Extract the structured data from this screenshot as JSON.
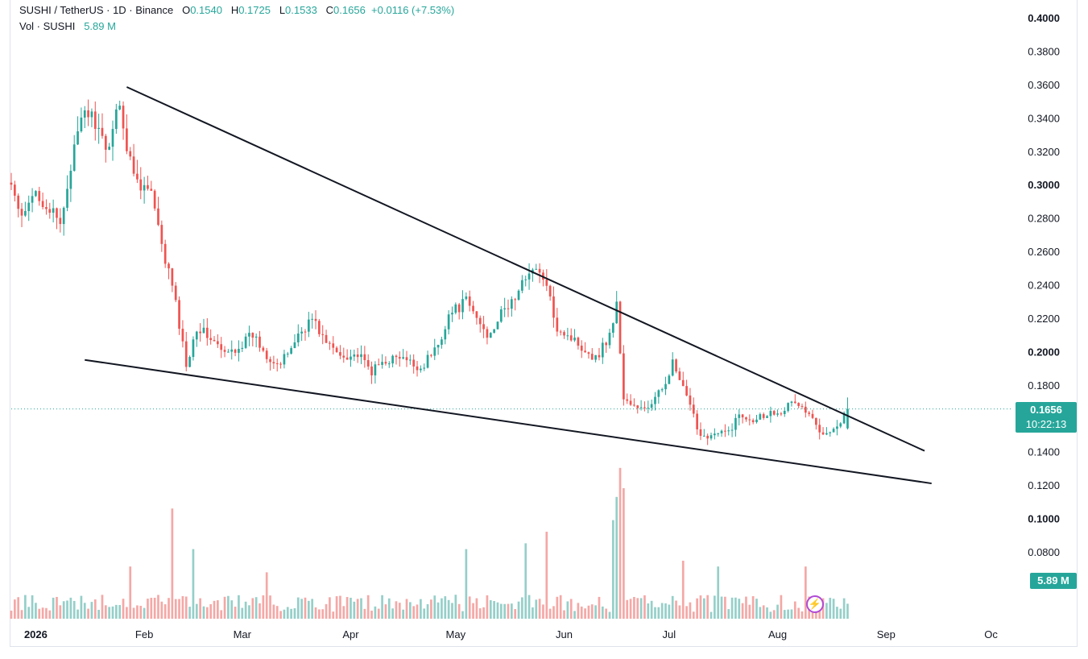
{
  "legend": {
    "pair": "SUSHI / TetherUS · 1D · Binance",
    "open_label": "O",
    "open": "0.1540",
    "high_label": "H",
    "high": "0.1725",
    "low_label": "L",
    "low": "0.1533",
    "close_label": "C",
    "close": "0.1656",
    "change": "+0.0116 (+7.53%)",
    "volume_label": "Vol · SUSHI",
    "volume": "5.89 M"
  },
  "price_tag": {
    "price": "0.1656",
    "countdown": "10:22:13"
  },
  "volume_tag": "5.89 M",
  "colors": {
    "up": "#26a69a",
    "down": "#ef5350",
    "vol_up": "#95cfc9",
    "vol_down": "#f4a8a6",
    "trendline": "#131722",
    "price_line": "#26a69a",
    "alert_icon": "#b04ad6"
  },
  "chart_data": {
    "type": "candlestick",
    "symbol": "SUSHI / TetherUS",
    "interval": "1D",
    "exchange": "Binance",
    "y_ticks": [
      "0.4000",
      "0.3800",
      "0.3600",
      "0.3400",
      "0.3200",
      "0.3000",
      "0.2800",
      "0.2600",
      "0.2400",
      "0.2200",
      "0.2000",
      "0.1800",
      "0.1400",
      "0.1200",
      "0.1000",
      "0.0800"
    ],
    "x_ticks": [
      "2026",
      "Feb",
      "Mar",
      "Apr",
      "May",
      "Jun",
      "Jul",
      "Aug",
      "Sep",
      "Oc"
    ],
    "ylim": [
      0.08,
      0.4
    ],
    "xlim": [
      "2025-12-25",
      "2026-10-05"
    ],
    "last_price": 0.1656,
    "anchors": [
      [
        "2025-12-25",
        0.3
      ],
      [
        "2025-12-28",
        0.278
      ],
      [
        "2026-01-01",
        0.296
      ],
      [
        "2026-01-05",
        0.285
      ],
      [
        "2026-01-08",
        0.275
      ],
      [
        "2026-01-11",
        0.312
      ],
      [
        "2026-01-15",
        0.345
      ],
      [
        "2026-01-18",
        0.338
      ],
      [
        "2026-01-21",
        0.318
      ],
      [
        "2026-01-25",
        0.352
      ],
      [
        "2026-01-27",
        0.32
      ],
      [
        "2026-01-30",
        0.303
      ],
      [
        "2026-02-03",
        0.295
      ],
      [
        "2026-02-06",
        0.262
      ],
      [
        "2026-02-09",
        0.24
      ],
      [
        "2026-02-13",
        0.192
      ],
      [
        "2026-02-16",
        0.215
      ],
      [
        "2026-02-20",
        0.208
      ],
      [
        "2026-02-24",
        0.198
      ],
      [
        "2026-02-28",
        0.203
      ],
      [
        "2026-03-04",
        0.21
      ],
      [
        "2026-03-08",
        0.198
      ],
      [
        "2026-03-12",
        0.192
      ],
      [
        "2026-03-17",
        0.21
      ],
      [
        "2026-03-21",
        0.22
      ],
      [
        "2026-03-25",
        0.205
      ],
      [
        "2026-03-29",
        0.198
      ],
      [
        "2026-04-03",
        0.198
      ],
      [
        "2026-04-07",
        0.188
      ],
      [
        "2026-04-11",
        0.195
      ],
      [
        "2026-04-15",
        0.196
      ],
      [
        "2026-04-21",
        0.19
      ],
      [
        "2026-04-26",
        0.204
      ],
      [
        "2026-04-29",
        0.222
      ],
      [
        "2026-05-04",
        0.23
      ],
      [
        "2026-05-10",
        0.21
      ],
      [
        "2026-05-15",
        0.225
      ],
      [
        "2026-05-19",
        0.235
      ],
      [
        "2026-05-22",
        0.25
      ],
      [
        "2026-05-26",
        0.245
      ],
      [
        "2026-05-30",
        0.215
      ],
      [
        "2026-06-05",
        0.205
      ],
      [
        "2026-06-10",
        0.196
      ],
      [
        "2026-06-14",
        0.21
      ],
      [
        "2026-06-16",
        0.228
      ],
      [
        "2026-06-18",
        0.172
      ],
      [
        "2026-06-22",
        0.165
      ],
      [
        "2026-06-26",
        0.168
      ],
      [
        "2026-06-29",
        0.178
      ],
      [
        "2026-07-02",
        0.193
      ],
      [
        "2026-07-06",
        0.172
      ],
      [
        "2026-07-10",
        0.15
      ],
      [
        "2026-07-14",
        0.15
      ],
      [
        "2026-07-18",
        0.152
      ],
      [
        "2026-07-21",
        0.162
      ],
      [
        "2026-07-25",
        0.16
      ],
      [
        "2026-07-29",
        0.163
      ],
      [
        "2026-08-02",
        0.165
      ],
      [
        "2026-08-06",
        0.17
      ],
      [
        "2026-08-10",
        0.162
      ],
      [
        "2026-08-13",
        0.152
      ],
      [
        "2026-08-18",
        0.155
      ],
      [
        "2026-08-21",
        0.1656
      ]
    ],
    "volume_spikes": [
      [
        "2026-02-09",
        38
      ],
      [
        "2026-02-15",
        24
      ],
      [
        "2026-01-28",
        18
      ],
      [
        "2026-03-08",
        16
      ],
      [
        "2026-05-04",
        24
      ],
      [
        "2026-05-21",
        26
      ],
      [
        "2026-05-27",
        30
      ],
      [
        "2026-06-15",
        34
      ],
      [
        "2026-06-16",
        42
      ],
      [
        "2026-06-17",
        52
      ],
      [
        "2026-06-18",
        45
      ],
      [
        "2026-07-05",
        20
      ],
      [
        "2026-07-15",
        18
      ],
      [
        "2026-08-09",
        18
      ],
      [
        "2026-08-22",
        12
      ]
    ],
    "trendlines": [
      {
        "from": [
          "2026-01-27",
          0.3585
        ],
        "to": [
          "2026-09-12",
          0.1405
        ]
      },
      {
        "from": [
          "2026-01-15",
          0.195
        ],
        "to": [
          "2026-09-14",
          0.121
        ]
      }
    ]
  }
}
